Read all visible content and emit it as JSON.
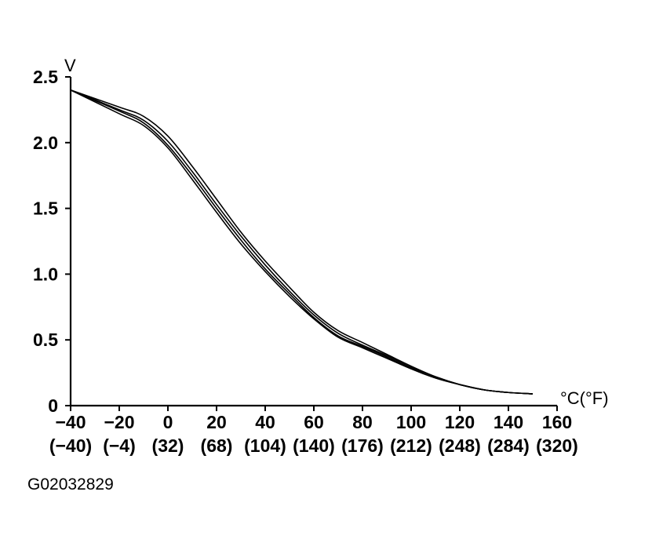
{
  "chart_data": {
    "type": "line",
    "title": "",
    "xlabel": "°C(°F)",
    "ylabel": "V",
    "xlim": [
      -40,
      160
    ],
    "ylim": [
      0,
      2.5
    ],
    "x_ticks": [
      "−40",
      "−20",
      "0",
      "20",
      "40",
      "60",
      "80",
      "100",
      "120",
      "140",
      "160"
    ],
    "x_ticks_fahrenheit": [
      "(−40)",
      "(−4)",
      "(32)",
      "(68)",
      "(104)",
      "(140)",
      "(176)",
      "(212)",
      "(248)",
      "(284)",
      "(320)"
    ],
    "y_ticks": [
      "2.5",
      "2.0",
      "1.5",
      "1.0",
      "0.5",
      "0"
    ],
    "grid": false,
    "series": [
      {
        "x": [
          -40,
          -20,
          -10,
          0,
          10,
          20,
          30,
          40,
          50,
          60,
          70,
          80,
          90,
          100,
          110,
          120,
          130,
          140,
          150
        ],
        "values": [
          2.4,
          2.27,
          2.2,
          2.05,
          1.82,
          1.57,
          1.32,
          1.1,
          0.9,
          0.71,
          0.57,
          0.48,
          0.39,
          0.3,
          0.22,
          0.16,
          0.12,
          0.1,
          0.09
        ]
      },
      {
        "x": [
          -40,
          -20,
          -10,
          0,
          10,
          20,
          30,
          40,
          50,
          60,
          70,
          80,
          90,
          100,
          110,
          120,
          130,
          140,
          150
        ],
        "values": [
          2.4,
          2.25,
          2.17,
          2.01,
          1.78,
          1.53,
          1.29,
          1.07,
          0.87,
          0.69,
          0.55,
          0.46,
          0.38,
          0.29,
          0.22,
          0.16,
          0.12,
          0.1,
          0.09
        ]
      },
      {
        "x": [
          -40,
          -20,
          -10,
          0,
          10,
          20,
          30,
          40,
          50,
          60,
          70,
          80,
          90,
          100,
          110,
          120,
          130,
          140,
          150
        ],
        "values": [
          2.4,
          2.24,
          2.15,
          1.98,
          1.75,
          1.5,
          1.26,
          1.04,
          0.85,
          0.67,
          0.53,
          0.45,
          0.37,
          0.28,
          0.21,
          0.16,
          0.12,
          0.1,
          0.09
        ]
      },
      {
        "x": [
          -40,
          -20,
          -10,
          0,
          10,
          20,
          30,
          40,
          50,
          60,
          70,
          80,
          90,
          100,
          110,
          120,
          130,
          140,
          150
        ],
        "values": [
          2.4,
          2.22,
          2.13,
          1.96,
          1.72,
          1.47,
          1.23,
          1.02,
          0.83,
          0.66,
          0.52,
          0.44,
          0.36,
          0.28,
          0.21,
          0.16,
          0.12,
          0.1,
          0.09
        ]
      }
    ]
  },
  "figure_id": "G02032829"
}
